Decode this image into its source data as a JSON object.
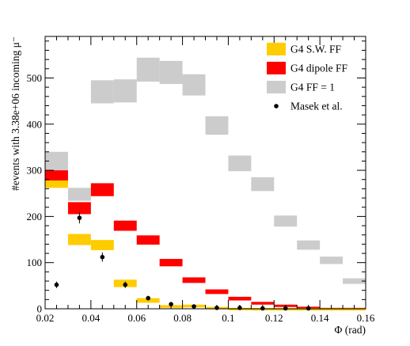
{
  "chart_data": {
    "type": "bar",
    "xlabel": "Φ (rad)",
    "ylabel": "#events with 3.38e+06 incoming μ⁻",
    "xlim": [
      0.02,
      0.16
    ],
    "ylim": [
      0,
      590
    ],
    "x_ticks": [
      "0.02",
      "0.04",
      "0.06",
      "0.08",
      "0.1",
      "0.12",
      "0.14",
      "0.16"
    ],
    "y_ticks": [
      "0",
      "100",
      "200",
      "300",
      "400",
      "500"
    ],
    "grid": false,
    "legend_position": "top-right",
    "bin_edges": [
      0.02,
      0.03,
      0.04,
      0.05,
      0.06,
      0.07,
      0.08,
      0.09,
      0.1,
      0.11,
      0.12,
      0.13,
      0.14,
      0.15,
      0.16
    ],
    "series": [
      {
        "name": "G4 FF = 1",
        "style": "band",
        "color": "#cccccc",
        "values": [
          320,
          248,
          470,
          472,
          518,
          512,
          485,
          397,
          315,
          270,
          190,
          138,
          105,
          60
        ],
        "errors": [
          20,
          14,
          25,
          25,
          26,
          25,
          23,
          20,
          17,
          15,
          12,
          10,
          8,
          6
        ]
      },
      {
        "name": "G4 dipole FF",
        "style": "band",
        "color": "#ff0000",
        "values": [
          285,
          218,
          258,
          180,
          149,
          100,
          62,
          37,
          22,
          12,
          7,
          3,
          1,
          1
        ],
        "errors": [
          15,
          13,
          14,
          11,
          10,
          8,
          6,
          5,
          4,
          3,
          2,
          1.5,
          1,
          1
        ]
      },
      {
        "name": "G4 S.W. FF",
        "style": "band",
        "color": "#ffcc00",
        "values": [
          270,
          150,
          138,
          55,
          18,
          5,
          6,
          2,
          1,
          0.5,
          0.5,
          0.5,
          0.5,
          0.5
        ],
        "errors": [
          8,
          12,
          11,
          8,
          5,
          3,
          3,
          2,
          1,
          0.5,
          0.5,
          0.5,
          0.5,
          0.5
        ]
      },
      {
        "name": "Masek et al.",
        "style": "points",
        "color": "#000000",
        "x": [
          0.025,
          0.035,
          0.045,
          0.055,
          0.065,
          0.075,
          0.085,
          0.095,
          0.105,
          0.115,
          0.125,
          0.135
        ],
        "values": [
          52,
          197,
          112,
          52,
          23,
          10,
          5,
          2,
          2,
          1,
          1,
          1
        ],
        "errors": [
          7,
          12,
          10,
          7,
          5,
          3,
          2,
          1.5,
          1.5,
          1,
          1,
          1
        ]
      }
    ]
  }
}
